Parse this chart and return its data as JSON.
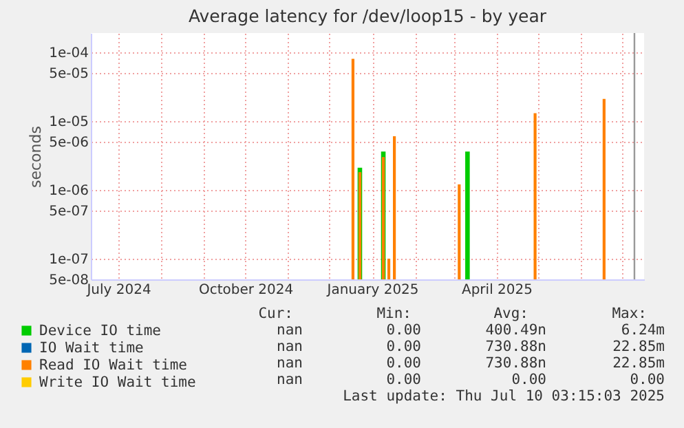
{
  "chart_data": {
    "type": "bar",
    "title": "Average latency for /dev/loop15 - by year",
    "ylabel": "seconds",
    "log": true,
    "x": [
      "2024-12-18",
      "2024-12-23",
      "2025-01-09",
      "2025-01-13",
      "2025-01-17",
      "2025-03-05",
      "2025-03-11",
      "2025-04-29",
      "2025-06-18"
    ],
    "series": [
      {
        "name": "Device IO time",
        "color": "#00cc00",
        "values": [
          null,
          2.1e-06,
          3.6e-06,
          null,
          null,
          null,
          3.6e-06,
          null,
          null
        ]
      },
      {
        "name": "IO Wait time",
        "color": "#0066b3",
        "values": [
          null,
          null,
          null,
          null,
          null,
          null,
          null,
          null,
          null
        ]
      },
      {
        "name": "Read IO Wait time",
        "color": "#ff8000",
        "values": [
          8e-05,
          1.8e-06,
          3e-06,
          1e-07,
          6e-06,
          1.2e-06,
          null,
          1.3e-05,
          2.1e-05
        ]
      },
      {
        "name": "Write IO Wait time",
        "color": "#ffcc00",
        "values": [
          null,
          null,
          null,
          null,
          null,
          null,
          null,
          null,
          null
        ]
      }
    ],
    "xlim": [
      "2024-06-11",
      "2025-07-17"
    ],
    "xticks": [
      {
        "value": "2024-07-01",
        "label": "July 2024"
      },
      {
        "value": "2024-08-01",
        "label": null
      },
      {
        "value": "2024-09-01",
        "label": null
      },
      {
        "value": "2024-10-01",
        "label": "October 2024"
      },
      {
        "value": "2024-11-01",
        "label": null
      },
      {
        "value": "2024-12-01",
        "label": null
      },
      {
        "value": "2025-01-01",
        "label": "January 2025"
      },
      {
        "value": "2025-02-01",
        "label": null
      },
      {
        "value": "2025-03-01",
        "label": null
      },
      {
        "value": "2025-04-01",
        "label": "April 2025"
      },
      {
        "value": "2025-05-01",
        "label": null
      },
      {
        "value": "2025-06-01",
        "label": null
      },
      {
        "value": "2025-07-01",
        "label": null
      }
    ],
    "ylim": [
      5e-08,
      0.00019
    ],
    "yticks": [
      {
        "value": 0.0001,
        "label": "1e-04"
      },
      {
        "value": 5e-05,
        "label": "5e-05"
      },
      {
        "value": 1e-05,
        "label": "1e-05"
      },
      {
        "value": 5e-06,
        "label": "5e-06"
      },
      {
        "value": 1e-06,
        "label": "1e-06"
      },
      {
        "value": 5e-07,
        "label": "5e-07"
      },
      {
        "value": 1e-07,
        "label": "1e-07"
      },
      {
        "value": 5e-08,
        "label": "5e-08"
      }
    ],
    "grid": true,
    "legend": "bottom",
    "ref_lines": [
      {
        "axis": "x",
        "value": "2025-07-10",
        "color": "#999999"
      }
    ],
    "annotations": [
      "Cur:",
      "Min:",
      "Avg:",
      "Max:",
      "nan",
      "0.00",
      "400.49n",
      "6.24m",
      "nan",
      "0.00",
      "730.88n",
      "22.85m",
      "nan",
      "0.00",
      "730.88n",
      "22.85m",
      "nan",
      "0.00",
      "0.00",
      "0.00",
      "Last update: Thu Jul 10 03:15:03 2025"
    ]
  }
}
